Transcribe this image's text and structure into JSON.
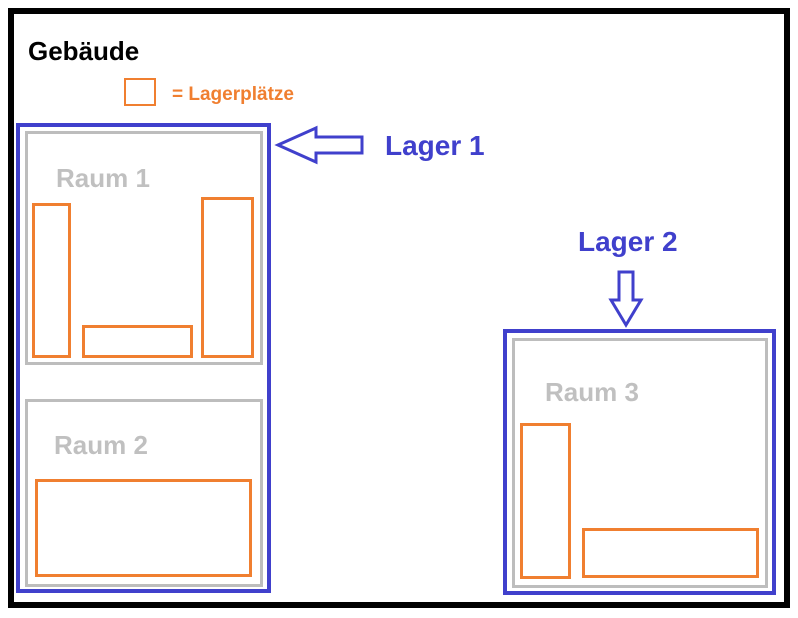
{
  "building": {
    "title": "Gebäude"
  },
  "legend": {
    "text": "= Lagerplätze"
  },
  "lagers": [
    {
      "label": "Lager 1"
    },
    {
      "label": "Lager 2"
    }
  ],
  "rooms": [
    {
      "label": "Raum 1"
    },
    {
      "label": "Raum 2"
    },
    {
      "label": "Raum 3"
    }
  ],
  "colors": {
    "building_border": "#000000",
    "lager": "#4040cc",
    "room": "#bdbdbd",
    "storage_slot": "#f07f30"
  }
}
